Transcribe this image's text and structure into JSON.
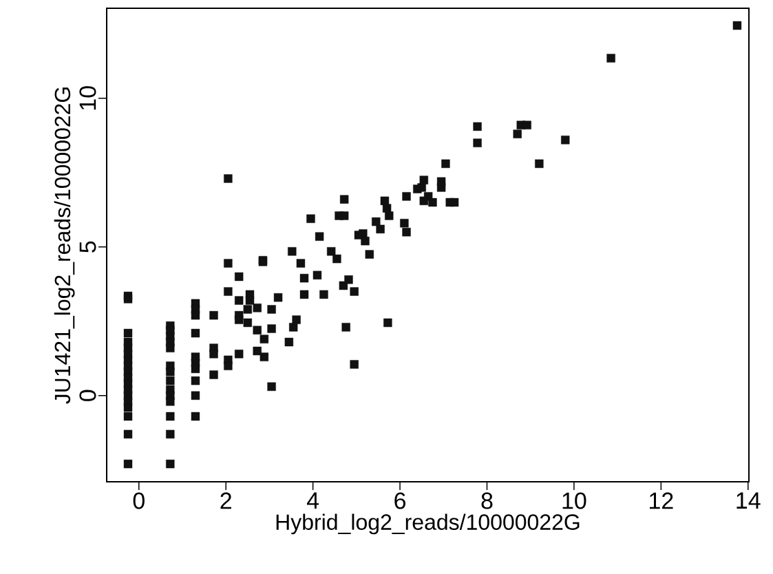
{
  "chart_data": {
    "type": "scatter",
    "xlabel": "Hybrid_log2_reads/10000022G",
    "ylabel": "JU1421_log2_reads/10000022G",
    "xlim": [
      -0.74,
      14.02
    ],
    "ylim": [
      -2.9,
      13.03
    ],
    "xticks": [
      0,
      2,
      4,
      6,
      8,
      10,
      12,
      14
    ],
    "yticks": [
      0,
      5,
      10
    ],
    "marker": "square",
    "series": [
      {
        "color": "#111111",
        "x": [
          -0.25,
          -0.25,
          -0.25,
          -0.25,
          -0.25,
          -0.25,
          -0.25,
          -0.25,
          -0.25,
          -0.25,
          -0.25,
          -0.25,
          -0.25,
          -0.25,
          -0.25,
          -0.25,
          -0.25,
          -0.25,
          0.72,
          0.72,
          0.72,
          0.72,
          0.72,
          0.72,
          0.72,
          0.72,
          0.72,
          0.72,
          0.72,
          0.72,
          0.72,
          0.72,
          1.3,
          1.3,
          1.3,
          1.3,
          1.3,
          1.3,
          1.3,
          1.3,
          1.3,
          1.3,
          1.72,
          1.72,
          1.72,
          1.72,
          2.05,
          2.05,
          2.05,
          2.05,
          2.05,
          2.3,
          2.3,
          2.3,
          2.3,
          2.3,
          2.55,
          2.55,
          2.5,
          2.5,
          2.72,
          2.72,
          2.72,
          2.85,
          2.85,
          2.88,
          2.88,
          3.05,
          3.05,
          3.05,
          3.2,
          3.45,
          3.52,
          3.55,
          3.62,
          3.72,
          3.8,
          3.8,
          3.95,
          4.1,
          4.15,
          4.25,
          4.42,
          4.55,
          4.6,
          4.72,
          4.72,
          4.7,
          4.76,
          4.82,
          4.95,
          4.95,
          5.05,
          5.15,
          5.2,
          5.3,
          5.45,
          5.55,
          5.65,
          5.7,
          5.72,
          5.75,
          6.1,
          6.15,
          6.15,
          6.4,
          6.5,
          6.55,
          6.55,
          6.65,
          6.75,
          6.95,
          6.95,
          7.05,
          7.15,
          7.25,
          7.78,
          7.78,
          8.7,
          8.78,
          8.92,
          9.2,
          9.8,
          10.85,
          13.75
        ],
        "values": [
          3.35,
          3.25,
          2.1,
          1.8,
          1.6,
          1.4,
          1.2,
          1.0,
          0.8,
          0.6,
          0.4,
          0.2,
          0.0,
          -0.2,
          -0.4,
          -0.7,
          -1.3,
          -2.3,
          2.35,
          2.2,
          2.0,
          1.8,
          1.6,
          1.0,
          0.8,
          0.5,
          0.2,
          0.0,
          -0.2,
          -0.7,
          -1.3,
          -2.3,
          3.1,
          2.9,
          2.7,
          2.1,
          1.3,
          1.1,
          0.9,
          0.5,
          0.0,
          -0.7,
          2.7,
          1.6,
          1.4,
          0.7,
          7.3,
          4.45,
          3.5,
          1.2,
          1.0,
          4.0,
          3.2,
          2.7,
          2.55,
          1.4,
          3.4,
          3.2,
          2.9,
          2.45,
          2.95,
          2.2,
          1.5,
          4.55,
          4.5,
          1.9,
          1.3,
          2.9,
          2.25,
          0.3,
          3.3,
          1.8,
          4.85,
          2.3,
          2.55,
          4.45,
          3.95,
          3.4,
          5.95,
          4.05,
          5.35,
          3.4,
          4.85,
          4.6,
          6.05,
          6.6,
          6.05,
          3.7,
          2.3,
          3.9,
          3.5,
          1.05,
          5.4,
          5.45,
          5.2,
          4.75,
          5.85,
          5.6,
          6.55,
          6.3,
          2.45,
          6.05,
          5.8,
          5.5,
          6.7,
          6.95,
          7.0,
          6.55,
          7.25,
          6.7,
          6.5,
          7.0,
          7.2,
          7.8,
          6.5,
          6.5,
          9.05,
          8.5,
          8.8,
          9.1,
          9.1,
          7.8,
          8.6,
          11.35,
          12.45
        ]
      }
    ]
  }
}
